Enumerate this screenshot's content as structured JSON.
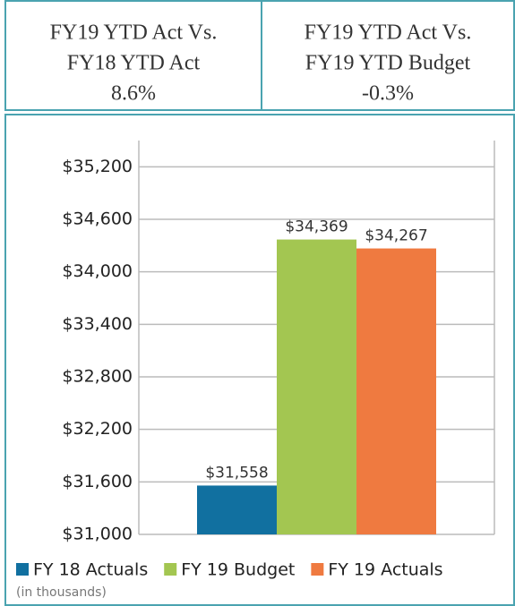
{
  "header": {
    "boxes": [
      {
        "lines": [
          "FY19 YTD Act Vs.",
          "FY18 YTD Act",
          "8.6%"
        ]
      },
      {
        "lines": [
          "FY19 YTD Act Vs.",
          "FY19 YTD Budget",
          "-0.3%"
        ]
      }
    ]
  },
  "chart_data": {
    "type": "bar",
    "categories": [
      null
    ],
    "series": [
      {
        "name": "FY 18 Actuals",
        "color": "#1170a0",
        "values": [
          31558
        ],
        "value_labels": [
          "$31,558"
        ]
      },
      {
        "name": "FY 19 Budget",
        "color": "#a3c651",
        "values": [
          34369
        ],
        "value_labels": [
          "$34,369"
        ]
      },
      {
        "name": "FY 19 Actuals",
        "color": "#ef7a40",
        "values": [
          34267
        ],
        "value_labels": [
          "$34,267"
        ]
      }
    ],
    "ylim": [
      31000,
      35500
    ],
    "yticks": [
      {
        "value": 31000,
        "label": "$31,000"
      },
      {
        "value": 31600,
        "label": "$31,600"
      },
      {
        "value": 32200,
        "label": "$32,200"
      },
      {
        "value": 32800,
        "label": "$32,800"
      },
      {
        "value": 33400,
        "label": "$33,400"
      },
      {
        "value": 34000,
        "label": "$34,000"
      },
      {
        "value": 34600,
        "label": "$34,600"
      },
      {
        "value": 35200,
        "label": "$35,200"
      }
    ],
    "grid": true,
    "legend": "bottom",
    "note": "(in thousands)"
  }
}
